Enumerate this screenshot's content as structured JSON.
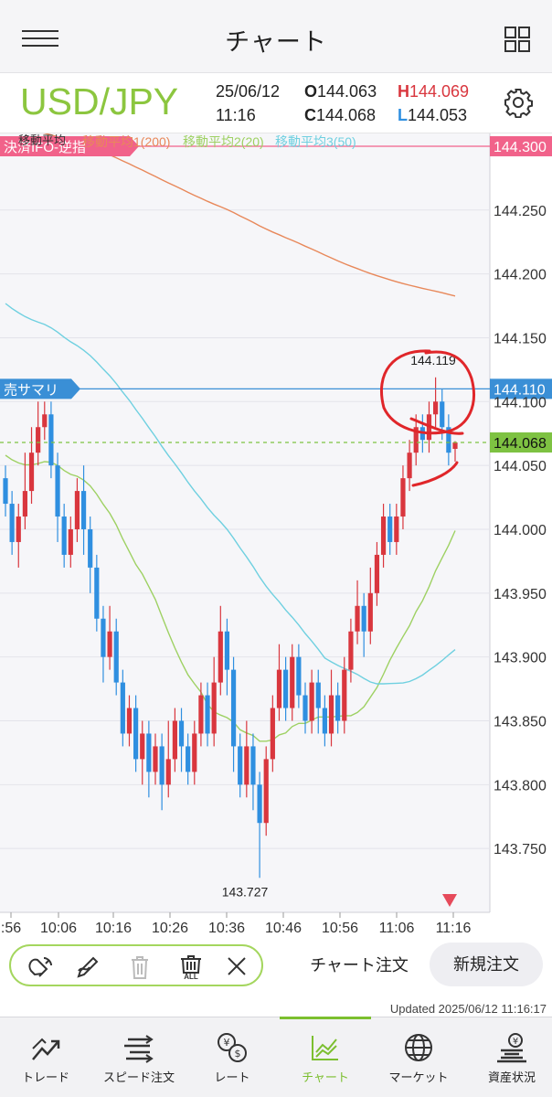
{
  "header": {
    "title": "チャート",
    "menu_icon": "hamburger-menu-icon",
    "layout_icon": "grid-layout-icon"
  },
  "info": {
    "pair": "USD/JPY",
    "date": "25/06/12",
    "time": "11:16",
    "open_key": "O",
    "open_val": "144.063",
    "high_key": "H",
    "high_val": "144.069",
    "close_key": "C",
    "close_val": "144.068",
    "low_key": "L",
    "low_val": "144.053",
    "settings_icon": "gear-icon"
  },
  "chart_data": {
    "type": "candlestick",
    "indicator_title": "移動平均",
    "ma_legend": [
      {
        "label": "移動平均1(200)",
        "color": "#e8885a"
      },
      {
        "label": "移動平均2(20)",
        "color": "#9ed163"
      },
      {
        "label": "移動平均3(50)",
        "color": "#6fd0e0"
      }
    ],
    "y_ticks": [
      "144.250",
      "144.200",
      "144.150",
      "144.100",
      "144.050",
      "144.000",
      "143.950",
      "143.900",
      "143.850",
      "143.800",
      "143.750"
    ],
    "x_ticks": [
      ":56",
      "10:06",
      "10:16",
      "10:26",
      "10:36",
      "10:46",
      "10:56",
      "11:06",
      "11:16"
    ],
    "ylim": [
      143.7,
      144.31
    ],
    "price_lines": [
      {
        "label": "決済IFO-逆指",
        "price_label": "144.300",
        "value": 144.3,
        "color": "#f1628a"
      },
      {
        "label": "売サマリ",
        "price_label": "144.110",
        "value": 144.11,
        "color": "#3a8fd6"
      },
      {
        "label": "",
        "price_label": "144.068",
        "value": 144.068,
        "color": "#7ec242"
      }
    ],
    "annotations": {
      "high": "144.119",
      "low": "143.727"
    },
    "candles": [
      [
        144.04,
        144.02,
        144.05,
        144.01
      ],
      [
        144.02,
        143.99,
        144.03,
        143.98
      ],
      [
        143.99,
        144.01,
        144.02,
        143.97
      ],
      [
        144.01,
        144.03,
        144.06,
        144.0
      ],
      [
        144.03,
        144.06,
        144.08,
        144.02
      ],
      [
        144.06,
        144.08,
        144.1,
        144.05
      ],
      [
        144.08,
        144.09,
        144.1,
        144.07
      ],
      [
        144.09,
        144.05,
        144.1,
        144.04
      ],
      [
        144.05,
        144.01,
        144.06,
        143.99
      ],
      [
        144.01,
        143.98,
        144.02,
        143.97
      ],
      [
        143.98,
        144.0,
        144.01,
        143.97
      ],
      [
        144.0,
        144.03,
        144.04,
        143.99
      ],
      [
        144.03,
        144.0,
        144.05,
        143.98
      ],
      [
        144.0,
        143.97,
        144.01,
        143.95
      ],
      [
        143.97,
        143.93,
        143.98,
        143.92
      ],
      [
        143.93,
        143.9,
        143.94,
        143.88
      ],
      [
        143.9,
        143.92,
        143.94,
        143.89
      ],
      [
        143.92,
        143.88,
        143.93,
        143.87
      ],
      [
        143.88,
        143.84,
        143.89,
        143.83
      ],
      [
        143.84,
        143.86,
        143.87,
        143.83
      ],
      [
        143.86,
        143.82,
        143.87,
        143.81
      ],
      [
        143.82,
        143.84,
        143.85,
        143.8
      ],
      [
        143.84,
        143.81,
        143.85,
        143.79
      ],
      [
        143.81,
        143.83,
        143.84,
        143.8
      ],
      [
        143.83,
        143.8,
        143.84,
        143.78
      ],
      [
        143.8,
        143.82,
        143.85,
        143.79
      ],
      [
        143.82,
        143.85,
        143.86,
        143.81
      ],
      [
        143.85,
        143.83,
        143.86,
        143.81
      ],
      [
        143.83,
        143.81,
        143.84,
        143.8
      ],
      [
        143.81,
        143.84,
        143.85,
        143.8
      ],
      [
        143.84,
        143.87,
        143.88,
        143.83
      ],
      [
        143.87,
        143.84,
        143.88,
        143.83
      ],
      [
        143.84,
        143.88,
        143.9,
        143.83
      ],
      [
        143.88,
        143.92,
        143.94,
        143.87
      ],
      [
        143.92,
        143.89,
        143.93,
        143.87
      ],
      [
        143.89,
        143.83,
        143.9,
        143.81
      ],
      [
        143.83,
        143.8,
        143.84,
        143.79
      ],
      [
        143.8,
        143.83,
        143.85,
        143.79
      ],
      [
        143.83,
        143.8,
        143.84,
        143.78
      ],
      [
        143.8,
        143.77,
        143.81,
        143.727
      ],
      [
        143.77,
        143.82,
        143.83,
        143.76
      ],
      [
        143.82,
        143.86,
        143.87,
        143.81
      ],
      [
        143.86,
        143.89,
        143.91,
        143.85
      ],
      [
        143.89,
        143.86,
        143.9,
        143.85
      ],
      [
        143.86,
        143.9,
        143.91,
        143.85
      ],
      [
        143.9,
        143.87,
        143.91,
        143.86
      ],
      [
        143.87,
        143.85,
        143.88,
        143.84
      ],
      [
        143.85,
        143.88,
        143.89,
        143.84
      ],
      [
        143.88,
        143.86,
        143.89,
        143.84
      ],
      [
        143.86,
        143.84,
        143.87,
        143.83
      ],
      [
        143.84,
        143.87,
        143.89,
        143.83
      ],
      [
        143.87,
        143.85,
        143.88,
        143.84
      ],
      [
        143.85,
        143.89,
        143.9,
        143.84
      ],
      [
        143.89,
        143.92,
        143.93,
        143.88
      ],
      [
        143.92,
        143.94,
        143.96,
        143.91
      ],
      [
        143.94,
        143.92,
        143.95,
        143.9
      ],
      [
        143.92,
        143.95,
        143.97,
        143.91
      ],
      [
        143.95,
        143.98,
        143.99,
        143.94
      ],
      [
        143.98,
        144.01,
        144.02,
        143.97
      ],
      [
        144.01,
        143.99,
        144.02,
        143.98
      ],
      [
        143.99,
        144.01,
        144.02,
        143.98
      ],
      [
        144.01,
        144.04,
        144.05,
        144.0
      ],
      [
        144.04,
        144.06,
        144.07,
        144.03
      ],
      [
        144.06,
        144.08,
        144.09,
        144.05
      ],
      [
        144.08,
        144.07,
        144.09,
        144.06
      ],
      [
        144.07,
        144.09,
        144.1,
        144.06
      ],
      [
        144.09,
        144.1,
        144.119,
        144.08
      ],
      [
        144.1,
        144.08,
        144.11,
        144.07
      ],
      [
        144.08,
        144.06,
        144.09,
        144.05
      ],
      [
        144.063,
        144.068,
        144.069,
        144.053
      ]
    ]
  },
  "toolbar": {
    "tools": [
      {
        "name": "magnet-tool-icon"
      },
      {
        "name": "draw-pen-icon"
      },
      {
        "name": "trash-icon"
      },
      {
        "name": "trash-all-icon",
        "badge": "ALL"
      },
      {
        "name": "close-icon"
      }
    ],
    "chart_order": "チャート注文",
    "new_order": "新規注文",
    "updated": "Updated  2025/06/12 11:16:17"
  },
  "nav": {
    "items": [
      {
        "label": "トレード",
        "icon": "trade-icon"
      },
      {
        "label": "スピード注文",
        "icon": "speed-order-icon"
      },
      {
        "label": "レート",
        "icon": "rate-icon"
      },
      {
        "label": "チャート",
        "icon": "chart-icon"
      },
      {
        "label": "マーケット",
        "icon": "market-globe-icon"
      },
      {
        "label": "資産状況",
        "icon": "assets-icon"
      }
    ]
  }
}
